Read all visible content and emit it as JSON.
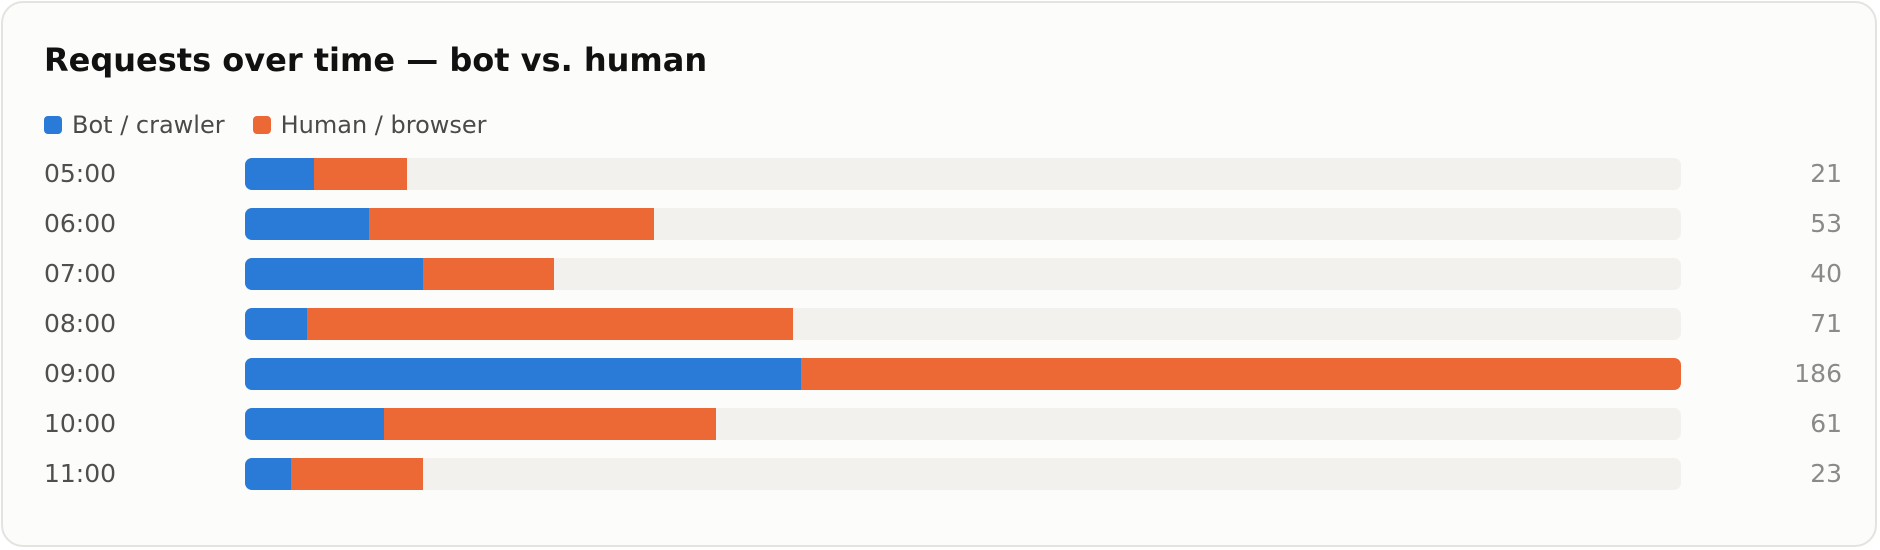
{
  "chart_data": {
    "type": "bar",
    "orientation": "horizontal",
    "stacked": true,
    "title": "Requests over time — bot vs. human",
    "categories": [
      "05:00",
      "06:00",
      "07:00",
      "08:00",
      "09:00",
      "10:00",
      "11:00"
    ],
    "series": [
      {
        "name": "Bot / crawler",
        "color": "#2a7bd8",
        "values": [
          9,
          16,
          23,
          8,
          72,
          18,
          6
        ]
      },
      {
        "name": "Human / browser",
        "color": "#ec6835",
        "values": [
          12,
          37,
          17,
          63,
          114,
          43,
          17
        ]
      }
    ],
    "totals": [
      "21",
      "53",
      "40",
      "71",
      "186",
      "61",
      "23"
    ],
    "xlim": [
      0,
      186
    ],
    "legend_position": "top-left",
    "grid": false,
    "track_color": "#f2f1ed"
  }
}
